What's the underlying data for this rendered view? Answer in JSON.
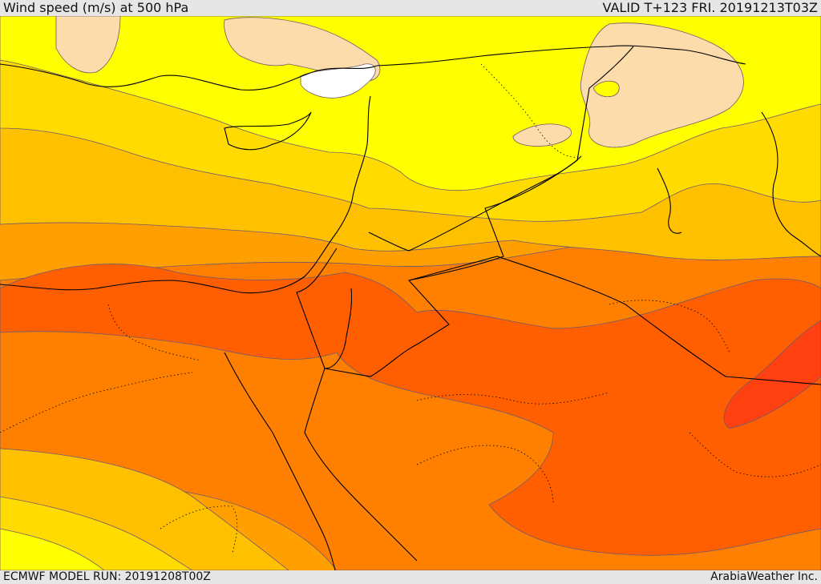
{
  "header": {
    "title": "Wind speed (m/s) at 500 hPa",
    "valid": "VALID T+123 FRI. 20191213T03Z"
  },
  "footer": {
    "model_run": "ECMWF MODEL RUN: 20191208T00Z",
    "credit": "ArabiaWeather Inc."
  },
  "colors": {
    "calm": "#ffffff",
    "band1": "#fcdcab",
    "band2": "#ffff00",
    "band3": "#ffdb00",
    "band4": "#ffc000",
    "band5": "#ffa000",
    "band6": "#ff8000",
    "band7": "#ff5f00",
    "band8": "#ff4010",
    "border": "#000000",
    "contour": "#6e5a6e"
  }
}
